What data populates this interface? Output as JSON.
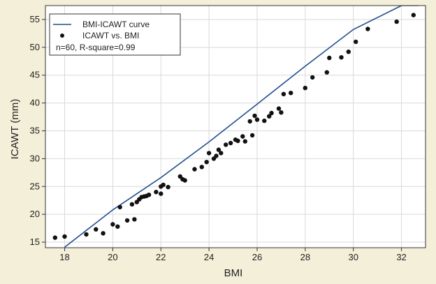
{
  "chart_data": {
    "type": "scatter",
    "xlabel": "BMI",
    "ylabel": "ICAWT (mm)",
    "xlim": [
      17.2,
      33
    ],
    "ylim": [
      14,
      57.5
    ],
    "xticks": [
      18,
      20,
      22,
      24,
      26,
      28,
      30,
      32
    ],
    "yticks": [
      15,
      20,
      25,
      30,
      35,
      40,
      45,
      50,
      55
    ],
    "legend": {
      "position": "top-left",
      "entries": [
        "BMI-ICAWT curve",
        "ICAWT vs. BMI"
      ],
      "annotation": "n=60, R-square=0.99"
    },
    "colors": {
      "curve": "#1f4e8c",
      "points": "#111111",
      "plot_bg": "#ffffff",
      "figure_bg": "#f3efd9"
    },
    "series": [
      {
        "name": "BMI-ICAWT curve",
        "kind": "line",
        "x": [
          18,
          20,
          22,
          24,
          26,
          28,
          30,
          32,
          32.7
        ],
        "y": [
          14.1,
          20.8,
          26.6,
          33.0,
          39.8,
          46.6,
          53.2,
          57.5,
          57.5
        ]
      },
      {
        "name": "ICAWT vs. BMI",
        "kind": "scatter",
        "x": [
          17.6,
          18.0,
          18.9,
          19.3,
          19.6,
          20.0,
          20.2,
          20.3,
          20.6,
          20.8,
          20.9,
          21.0,
          21.1,
          21.2,
          21.3,
          21.4,
          21.5,
          21.8,
          22.0,
          22.1,
          22.3,
          22.8,
          22.9,
          23.0,
          23.4,
          23.7,
          23.9,
          24.0,
          24.2,
          24.3,
          24.4,
          24.5,
          24.7,
          24.9,
          25.1,
          25.2,
          25.4,
          25.5,
          25.7,
          25.8,
          25.9,
          26.0,
          26.3,
          26.5,
          26.6,
          26.9,
          27.0,
          27.1,
          27.4,
          28.0,
          28.3,
          28.9,
          29.0,
          29.5,
          29.8,
          30.1,
          30.6,
          31.8,
          32.5,
          22.0
        ],
        "y": [
          15.8,
          16.0,
          16.4,
          17.3,
          16.6,
          18.2,
          17.8,
          21.3,
          18.9,
          21.8,
          19.1,
          22.2,
          22.7,
          23.1,
          23.2,
          23.3,
          23.5,
          24.0,
          23.7,
          25.3,
          24.9,
          26.8,
          26.3,
          26.1,
          28.1,
          28.5,
          29.4,
          31.0,
          30.0,
          30.5,
          31.6,
          31.0,
          32.5,
          32.8,
          33.4,
          33.2,
          34.0,
          33.1,
          36.7,
          34.2,
          37.7,
          37.0,
          36.8,
          37.6,
          38.2,
          39.0,
          38.3,
          41.6,
          41.8,
          42.7,
          44.6,
          45.5,
          48.1,
          48.2,
          49.2,
          51.0,
          53.3,
          54.6,
          55.8,
          25.0
        ]
      }
    ]
  }
}
